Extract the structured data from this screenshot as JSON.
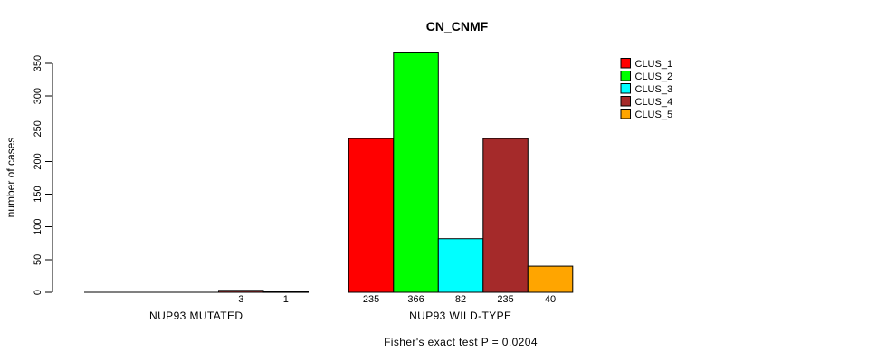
{
  "chart_data": {
    "type": "bar",
    "title": "CN_CNMF",
    "ylabel": "number of cases",
    "xlabel": "",
    "ylim": [
      0,
      350
    ],
    "yticks": [
      0,
      50,
      100,
      150,
      200,
      250,
      300,
      350
    ],
    "grid": false,
    "legend_position": "top-right",
    "bar_value_labels_shown": true,
    "zero_value_labels_hidden": true,
    "categories": [
      "NUP93 MUTATED",
      "NUP93 WILD-TYPE"
    ],
    "series": [
      {
        "name": "CLUS_1",
        "color": "#FF0000",
        "values": [
          0,
          235
        ]
      },
      {
        "name": "CLUS_2",
        "color": "#00FF00",
        "values": [
          0,
          366
        ]
      },
      {
        "name": "CLUS_3",
        "color": "#00FFFF",
        "values": [
          0,
          82
        ]
      },
      {
        "name": "CLUS_4",
        "color": "#A52A2A",
        "values": [
          3,
          235
        ]
      },
      {
        "name": "CLUS_5",
        "color": "#FFA500",
        "values": [
          1,
          40
        ]
      }
    ],
    "footnote": "Fisher's exact test P = 0.0204",
    "axis_color": "#000000",
    "bar_border_color": "#000000",
    "background_color": "#FFFFFF"
  }
}
